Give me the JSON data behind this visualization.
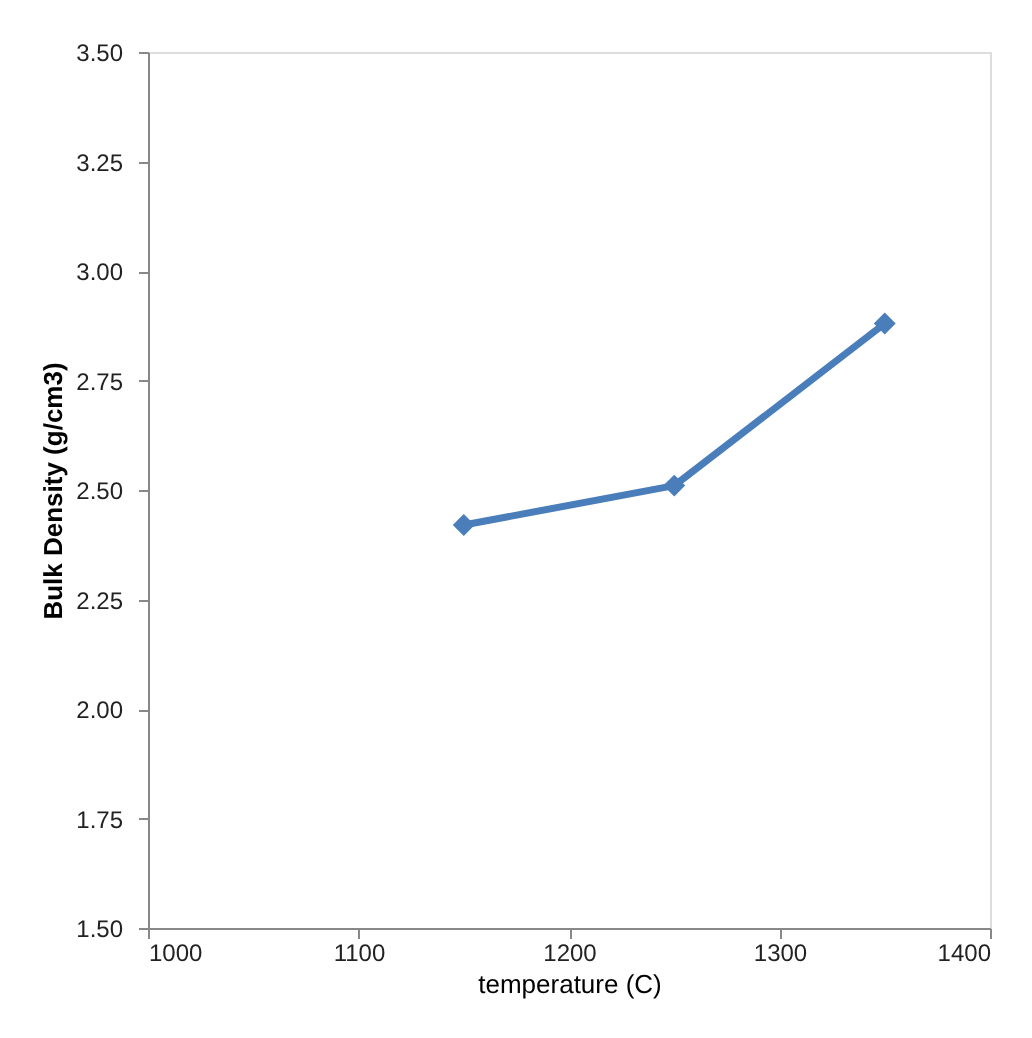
{
  "chart_data": {
    "type": "line",
    "xlabel": "temperature (C)",
    "ylabel": "Bulk Density (g/cm3)",
    "x": [
      1150,
      1250,
      1350
    ],
    "series": [
      {
        "color": "#4a7ebb",
        "values": [
          2.42,
          2.51,
          2.88
        ]
      }
    ],
    "xlim": [
      1000,
      1400
    ],
    "xticks": [
      1000,
      1100,
      1200,
      1300,
      1400
    ],
    "ylim": [
      1.5,
      3.5
    ],
    "yticks": [
      {
        "value": 1.5,
        "label": "1.50"
      },
      {
        "value": 1.75,
        "label": "1.75"
      },
      {
        "value": 2.0,
        "label": "2.00"
      },
      {
        "value": 2.25,
        "label": "2.25"
      },
      {
        "value": 2.5,
        "label": "2.50"
      },
      {
        "value": 2.75,
        "label": "2.75"
      },
      {
        "value": 3.0,
        "label": "3.00"
      },
      {
        "value": 3.25,
        "label": "3.25"
      },
      {
        "value": 3.5,
        "label": "3.50"
      }
    ],
    "grid": false,
    "marker": "diamond",
    "line_style": "solid"
  }
}
